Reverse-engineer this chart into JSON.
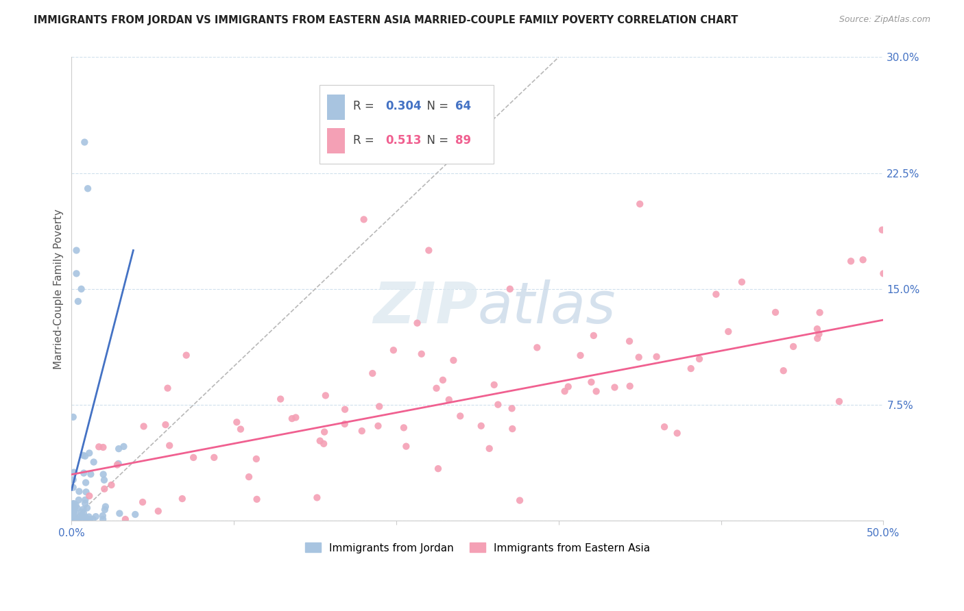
{
  "title": "IMMIGRANTS FROM JORDAN VS IMMIGRANTS FROM EASTERN ASIA MARRIED-COUPLE FAMILY POVERTY CORRELATION CHART",
  "source": "Source: ZipAtlas.com",
  "ylabel": "Married-Couple Family Poverty",
  "xlim": [
    0.0,
    0.5
  ],
  "ylim": [
    0.0,
    0.3
  ],
  "jordan_R": 0.304,
  "jordan_N": 64,
  "eastern_asia_R": 0.513,
  "eastern_asia_N": 89,
  "jordan_color": "#a8c4e0",
  "eastern_asia_color": "#f4a0b5",
  "jordan_line_color": "#4472c4",
  "eastern_asia_line_color": "#f06090",
  "diagonal_color": "#b8b8b8",
  "watermark": "ZIPAtlas",
  "background_color": "#ffffff",
  "grid_color": "#b0cce0",
  "title_color": "#222222",
  "axis_label_color": "#555555",
  "tick_color": "#4472c4",
  "source_color": "#999999",
  "legend_border_color": "#cccccc"
}
